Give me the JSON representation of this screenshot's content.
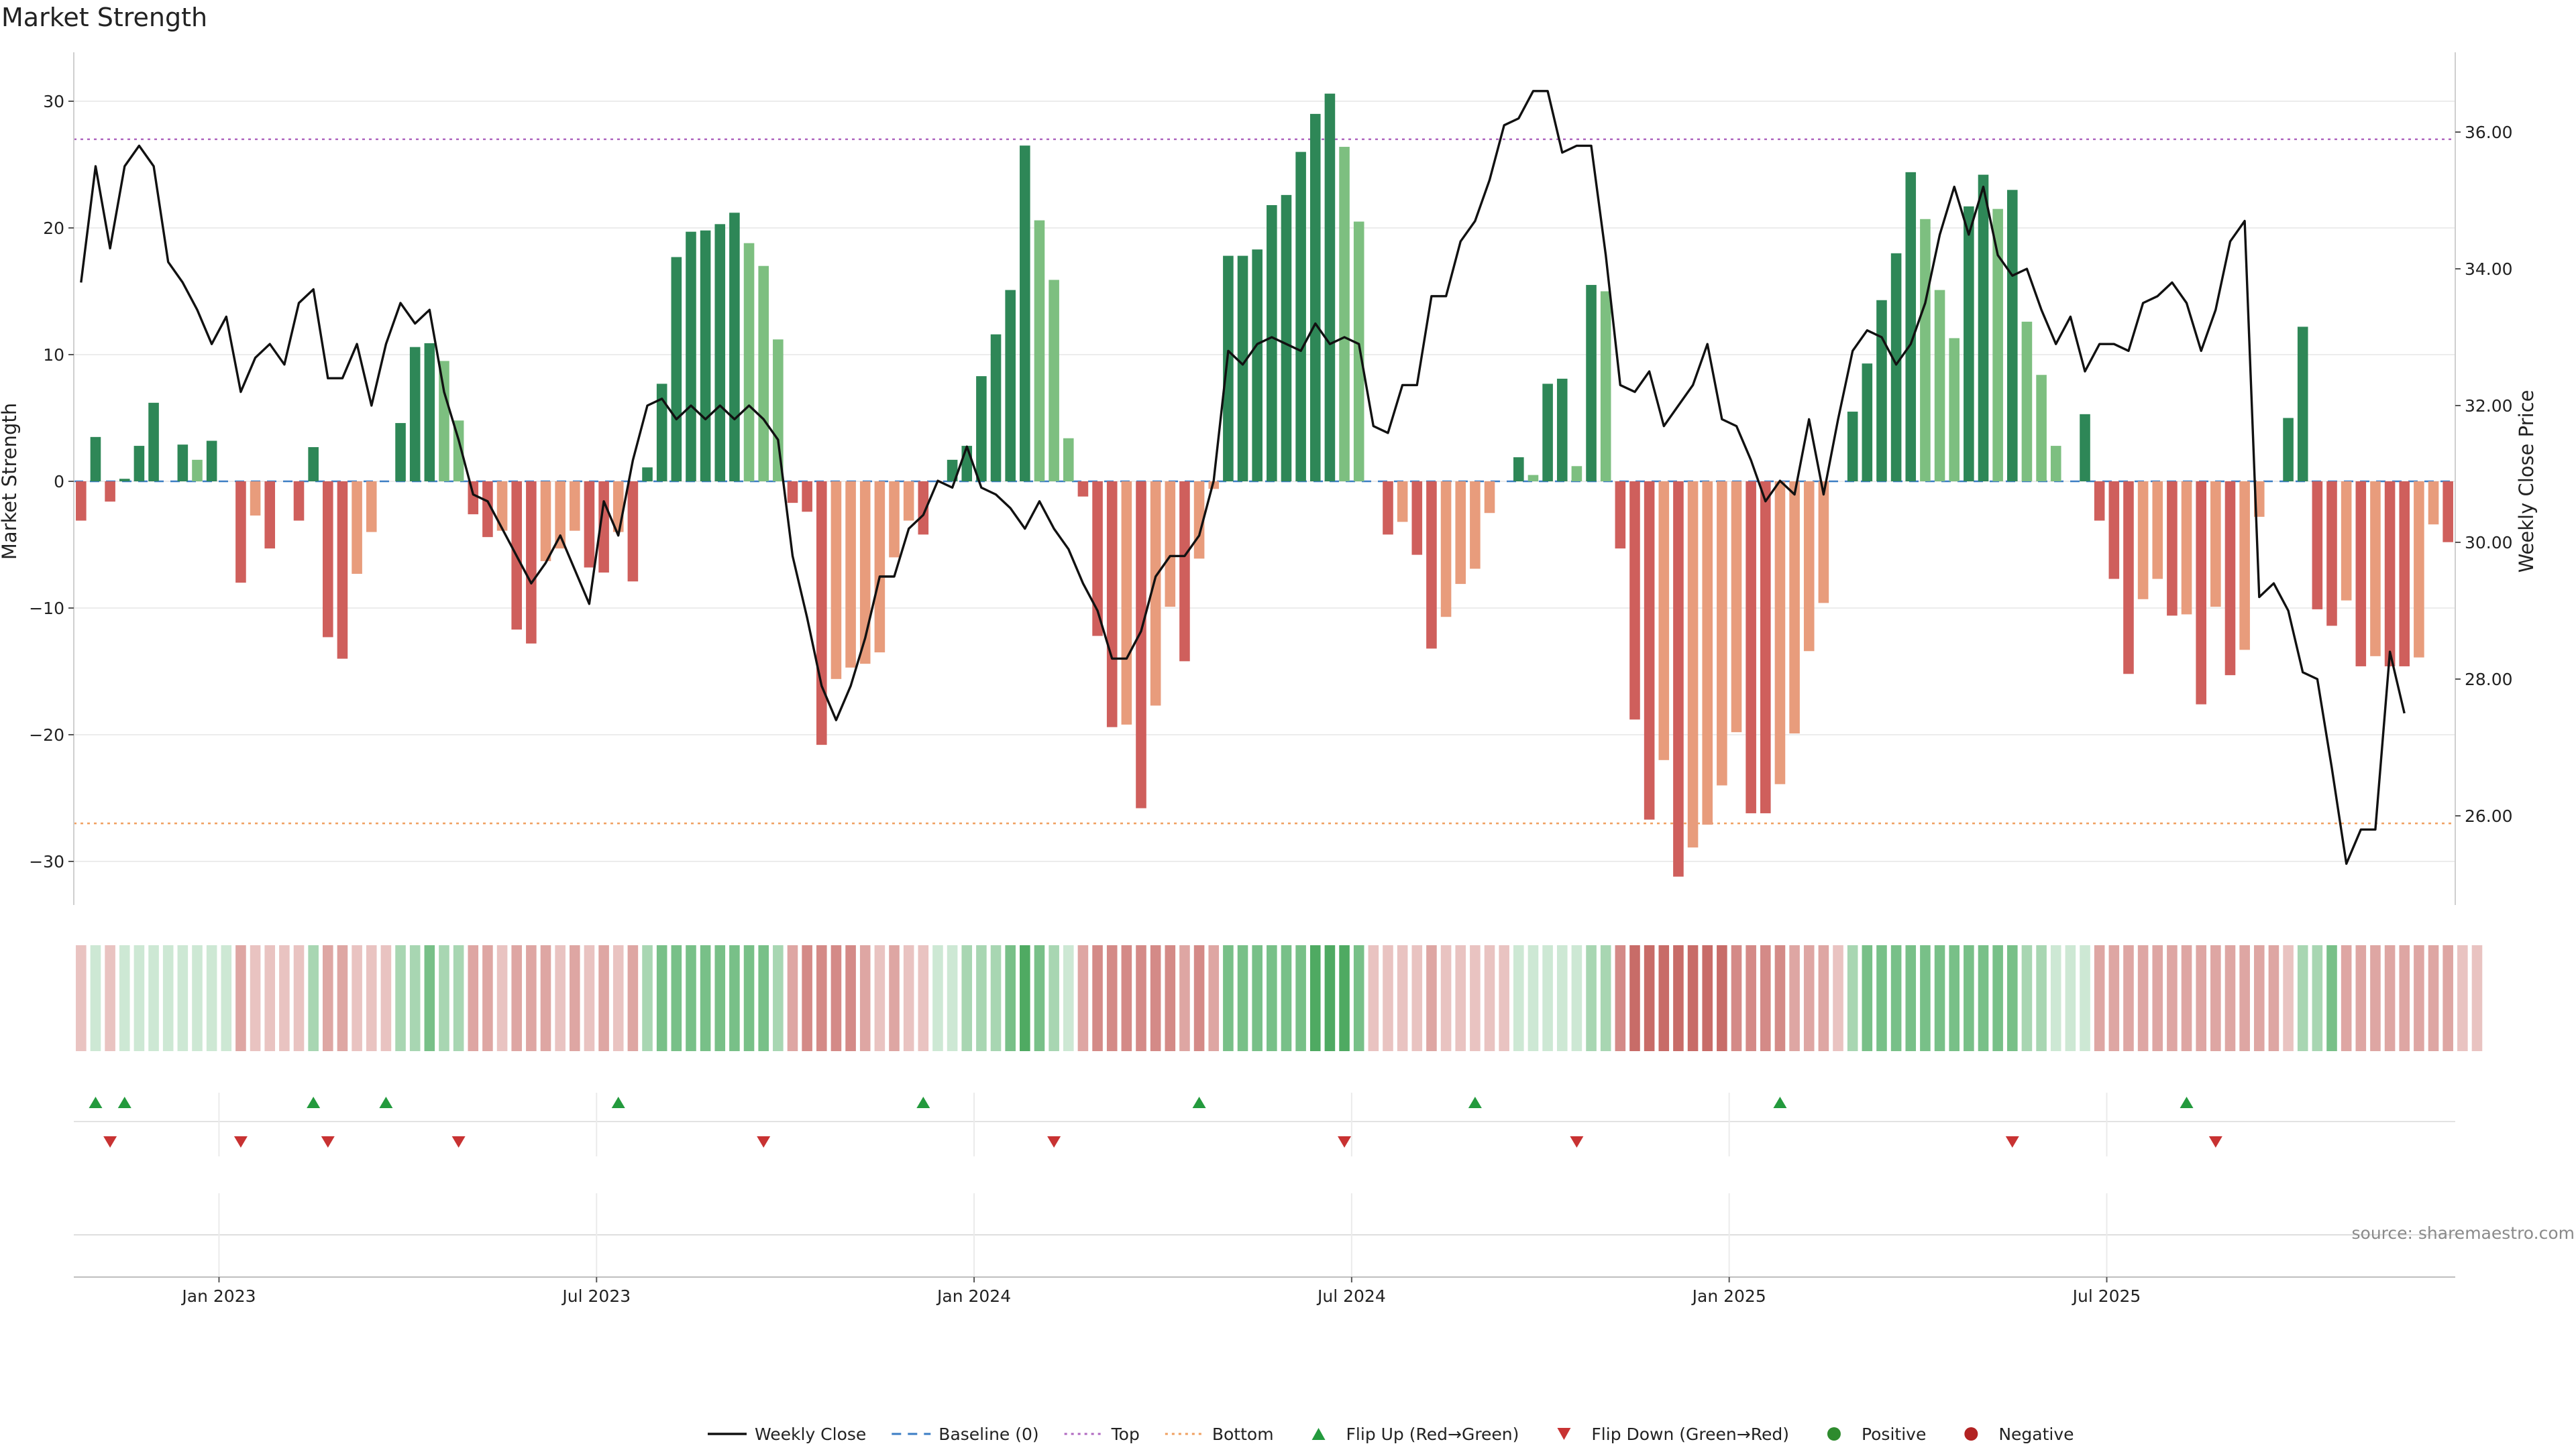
{
  "chart_data": {
    "type": "bar",
    "title": "Market Strength",
    "ylabel": "Market Strength",
    "y2label": "Weekly Close Price",
    "ylim": [
      -33,
      34
    ],
    "y2lim": [
      25.0,
      37.0
    ],
    "y_ticks": [
      30,
      20,
      10,
      0,
      -10,
      -20,
      -30
    ],
    "y_tick_labels": [
      "30",
      "20",
      "10",
      "0",
      "−10",
      "−20",
      "−30"
    ],
    "y2_ticks": [
      36,
      34,
      32,
      30,
      28,
      26
    ],
    "y2_tick_labels": [
      "36.00",
      "34.00",
      "32.00",
      "30.00",
      "28.00",
      "26.00"
    ],
    "x_tick_labels": [
      "Jan 2023",
      "Jul 2023",
      "Jan 2024",
      "Jul 2024",
      "Jan 2025",
      "Jul 2025"
    ],
    "x_tick_week_index": [
      9.5,
      35.5,
      61.5,
      87.5,
      113.5,
      139.5
    ],
    "top_level": 27,
    "bottom_level": -27,
    "strength": [
      -3.1,
      3.5,
      -1.6,
      0.2,
      2.8,
      6.2,
      0,
      2.9,
      1.7,
      3.2,
      0,
      -8,
      -2.7,
      -5.3,
      0,
      -3.1,
      2.7,
      -12.3,
      -14,
      -7.3,
      -4,
      0,
      4.6,
      10.6,
      10.9,
      9.5,
      4.8,
      -2.6,
      -4.4,
      -3.9,
      -11.7,
      -12.8,
      -6.3,
      -5.3,
      -3.9,
      -6.8,
      -7.2,
      -4,
      -7.9,
      1.1,
      7.7,
      17.7,
      19.7,
      19.8,
      20.3,
      21.2,
      18.8,
      17,
      11.2,
      -1.7,
      -2.4,
      -20.8,
      -15.6,
      -14.7,
      -14.4,
      -13.5,
      -6,
      -3.1,
      -4.2,
      0,
      1.7,
      2.8,
      8.3,
      11.6,
      15.1,
      26.5,
      20.6,
      15.9,
      3.4,
      -1.2,
      -12.2,
      -19.4,
      -19.2,
      -25.8,
      -17.7,
      -9.9,
      -14.2,
      -6.1,
      -0.6,
      17.8,
      17.8,
      18.3,
      21.8,
      22.6,
      26,
      29,
      30.6,
      26.4,
      20.5,
      0,
      -4.2,
      -3.2,
      -5.8,
      -13.2,
      -10.7,
      -8.1,
      -6.9,
      -2.5,
      0,
      1.9,
      0.5,
      7.7,
      8.1,
      1.2,
      15.5,
      15,
      -5.3,
      -18.8,
      -26.7,
      -22,
      -31.2,
      -28.9,
      -27.1,
      -24,
      -19.8,
      -26.2,
      -26.2,
      -23.9,
      -19.9,
      -13.4,
      -9.6,
      0,
      5.5,
      9.3,
      14.3,
      18,
      24.4,
      20.7,
      15.1,
      11.3,
      21.7,
      24.2,
      21.5,
      23,
      12.6,
      8.4,
      2.8,
      0,
      5.3,
      -3.1,
      -7.7,
      -15.2,
      -9.3,
      -7.7,
      -10.6,
      -10.5,
      -17.6,
      -9.9,
      -15.3,
      -13.3,
      -2.8,
      0,
      5,
      12.2,
      -10.1,
      -11.4,
      -9.4,
      -14.6,
      -13.8,
      -14.6,
      -14.6,
      -13.9,
      -3.4,
      -4.8
    ],
    "weekly_close": [
      33.8,
      35.5,
      34.3,
      35.5,
      35.8,
      35.5,
      34.1,
      33.8,
      33.4,
      32.9,
      33.3,
      32.2,
      32.7,
      32.9,
      32.6,
      33.5,
      33.7,
      32.4,
      32.4,
      32.9,
      32,
      32.9,
      33.5,
      33.2,
      33.4,
      32.2,
      31.5,
      30.7,
      30.6,
      30.2,
      29.8,
      29.4,
      29.7,
      30.1,
      29.6,
      29.1,
      30.6,
      30.1,
      31.2,
      32,
      32.1,
      31.8,
      32,
      31.8,
      32,
      31.8,
      32,
      31.8,
      31.5,
      29.8,
      28.9,
      27.9,
      27.4,
      27.9,
      28.6,
      29.5,
      29.5,
      30.2,
      30.4,
      30.9,
      30.8,
      31.4,
      30.8,
      30.7,
      30.5,
      30.2,
      30.6,
      30.2,
      29.9,
      29.4,
      29,
      28.3,
      28.3,
      28.7,
      29.5,
      29.8,
      29.8,
      30.1,
      30.9,
      32.8,
      32.6,
      32.9,
      33,
      32.9,
      32.8,
      33.2,
      32.9,
      33,
      32.9,
      31.7,
      31.6,
      32.3,
      32.3,
      33.6,
      33.6,
      34.4,
      34.7,
      35.3,
      36.1,
      36.2,
      36.6,
      36.6,
      35.7,
      35.8,
      35.8,
      34.2,
      32.3,
      32.2,
      32.5,
      31.7,
      32,
      32.3,
      32.9,
      31.8,
      31.7,
      31.2,
      30.6,
      30.9,
      30.7,
      31.8,
      30.7,
      31.8,
      32.8,
      33.1,
      33,
      32.6,
      32.9,
      33.5,
      34.5,
      35.2,
      34.5,
      35.2,
      34.2,
      33.9,
      34,
      33.4,
      32.9,
      33.3,
      32.5,
      32.9,
      32.9,
      32.8,
      33.5,
      33.6,
      33.8,
      33.5,
      32.8,
      33.4,
      34.4,
      34.7,
      29.2,
      29.4,
      29,
      28.1,
      28,
      26.7,
      25.3,
      25.8,
      25.8,
      28.4,
      27.5
    ],
    "flip_up_week_index": [
      1,
      3,
      16,
      21,
      37,
      58,
      77,
      96,
      117,
      145
    ],
    "flip_down_week_index": [
      2,
      11,
      17,
      26,
      47,
      67,
      87,
      103,
      133,
      147
    ],
    "heat_palette": [
      "#e9c3c1",
      "#dea6a3",
      "#d48a87",
      "#c86c68",
      "#cde8d4",
      "#a8d6b2",
      "#78c088",
      "#4faa62"
    ],
    "heat_level": [
      0,
      4,
      0,
      4,
      4,
      4,
      4,
      4,
      4,
      4,
      4,
      1,
      0,
      0,
      0,
      0,
      5,
      1,
      1,
      0,
      0,
      0,
      5,
      5,
      6,
      5,
      5,
      1,
      1,
      0,
      1,
      1,
      1,
      0,
      1,
      0,
      1,
      0,
      1,
      5,
      6,
      6,
      6,
      6,
      6,
      6,
      6,
      6,
      5,
      1,
      2,
      2,
      2,
      2,
      1,
      0,
      1,
      0,
      0,
      4,
      4,
      5,
      5,
      5,
      6,
      7,
      6,
      5,
      4,
      1,
      2,
      2,
      2,
      2,
      2,
      2,
      1,
      2,
      1,
      6,
      6,
      6,
      6,
      6,
      6,
      7,
      7,
      7,
      6,
      0,
      0,
      0,
      0,
      1,
      0,
      0,
      0,
      0,
      0,
      4,
      4,
      4,
      4,
      4,
      5,
      5,
      2,
      3,
      3,
      3,
      3,
      3,
      3,
      3,
      2,
      2,
      2,
      2,
      1,
      1,
      1,
      0,
      5,
      6,
      6,
      6,
      6,
      6,
      6,
      6,
      6,
      6,
      6,
      6,
      5,
      5,
      4,
      4,
      4,
      1,
      1,
      1,
      1,
      1,
      1,
      1,
      1,
      1,
      1,
      1,
      1,
      1,
      0,
      5,
      5,
      6,
      1,
      1,
      1,
      1,
      1,
      1,
      1,
      1,
      0,
      0
    ],
    "colors": {
      "strong_green": "#2e8757",
      "light_green": "#7dbf80",
      "strong_red": "#cf5f5c",
      "light_red": "#e89c7c",
      "price_line": "#111111",
      "baseline": "#3b7dc4",
      "top_line": "#b068c0",
      "bottom_line": "#f0a060",
      "flip_up": "#239a3d",
      "flip_down": "#c83232",
      "positive": "#2e8b2e",
      "negative": "#b22222"
    },
    "legend": [
      {
        "label": "Weekly Close",
        "kind": "line"
      },
      {
        "label": "Baseline (0)",
        "kind": "dash"
      },
      {
        "label": "Top",
        "kind": "dot-top"
      },
      {
        "label": "Bottom",
        "kind": "dot-bottom"
      },
      {
        "label": "Flip Up (Red→Green)",
        "kind": "tri-up"
      },
      {
        "label": "Flip Down (Green→Red)",
        "kind": "tri-down"
      },
      {
        "label": "Positive",
        "kind": "circle-pos"
      },
      {
        "label": "Negative",
        "kind": "circle-neg"
      }
    ],
    "source": "source: sharemaestro.com"
  }
}
